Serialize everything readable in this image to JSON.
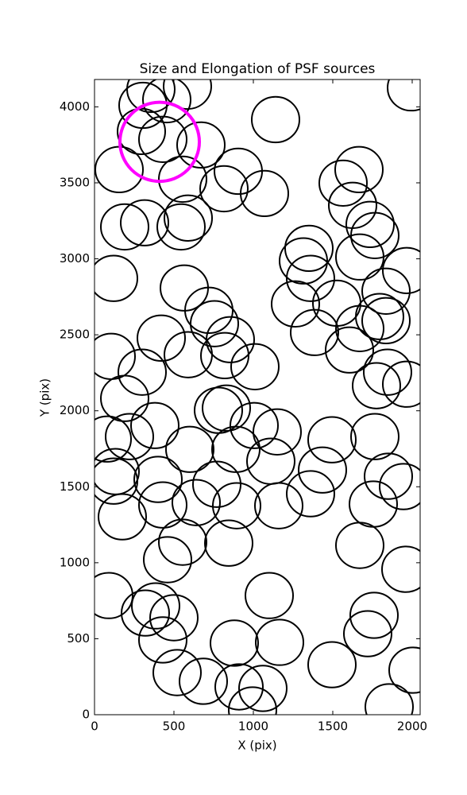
{
  "chart_data": {
    "type": "ellipse",
    "title": "Size and Elongation of PSF sources",
    "xlabel": "X (pix)",
    "ylabel": "Y (pix)",
    "xlim": [
      0,
      2050
    ],
    "ylim": [
      0,
      4180
    ],
    "xticks": [
      0,
      500,
      1000,
      1500,
      2000
    ],
    "yticks": [
      0,
      500,
      1000,
      1500,
      2000,
      2500,
      3000,
      3500,
      4000
    ],
    "color": "#000000",
    "ellipse_width": 300,
    "ellipse_height": 300,
    "x": [
      1140,
      1995,
      585,
      355,
      305,
      455,
      295,
      430,
      670,
      905,
      155,
      555,
      815,
      1070,
      1565,
      1665,
      1625,
      1735,
      1765,
      590,
      545,
      190,
      315,
      1350,
      1315,
      1360,
      1670,
      1965,
      120,
      565,
      1265,
      1525,
      1835,
      720,
      755,
      1795,
      1835,
      1385,
      1670,
      420,
      855,
      1605,
      590,
      820,
      1010,
      105,
      300,
      1845,
      1965,
      1775,
      190,
      780,
      830,
      1005,
      1150,
      380,
      80,
      220,
      1495,
      1765,
      600,
      890,
      1110,
      1435,
      130,
      400,
      770,
      1850,
      1945,
      120,
      430,
      640,
      895,
      1160,
      1360,
      1755,
      175,
      555,
      845,
      1670,
      460,
      1960,
      1100,
      90,
      385,
      320,
      500,
      1760,
      1720,
      430,
      880,
      1165,
      1495,
      520,
      685,
      2005,
      910,
      1060,
      995,
      1855
    ],
    "values": [
      3916,
      4125,
      4136,
      4115,
      4010,
      4047,
      3838,
      3786,
      3749,
      3576,
      3587,
      3524,
      3461,
      3430,
      3498,
      3587,
      3352,
      3226,
      3153,
      3268,
      3210,
      3210,
      3237,
      3069,
      2986,
      2871,
      3012,
      2923,
      2871,
      2808,
      2703,
      2708,
      2787,
      2661,
      2573,
      2620,
      2593,
      2515,
      2541,
      2478,
      2468,
      2400,
      2369,
      2363,
      2290,
      2358,
      2254,
      2254,
      2175,
      2165,
      2081,
      2003,
      2018,
      1903,
      1861,
      1903,
      1814,
      1830,
      1809,
      1830,
      1746,
      1746,
      1668,
      1610,
      1600,
      1548,
      1516,
      1569,
      1501,
      1537,
      1380,
      1396,
      1375,
      1375,
      1454,
      1386,
      1302,
      1135,
      1129,
      1114,
      1020,
      957,
      784,
      784,
      716,
      669,
      638,
      654,
      533,
      492,
      471,
      476,
      329,
      277,
      220,
      293,
      183,
      173,
      31,
      52
    ],
    "highlight": {
      "x": 410,
      "y": 3770,
      "width": 500,
      "height": 520,
      "color": "#ff00ff"
    }
  }
}
